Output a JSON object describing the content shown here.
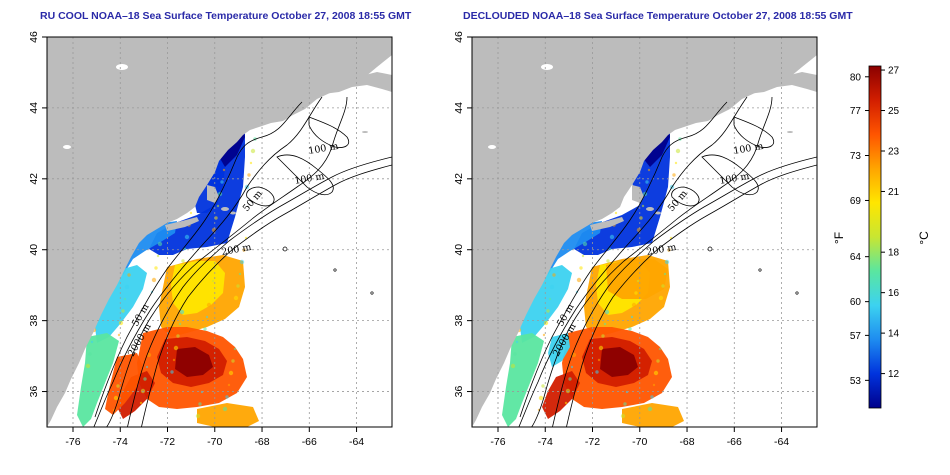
{
  "panels": [
    {
      "id": "left",
      "title": "RU COOL NOAA–18 Sea Surface Temperature October 27, 2008 18:55 GMT"
    },
    {
      "id": "right",
      "title": "DECLOUDED NOAA–18 Sea Surface Temperature October 27, 2008 18:55 GMT"
    }
  ],
  "map": {
    "x_ticks": [
      "-76",
      "-74",
      "-72",
      "-70",
      "-68",
      "-66",
      "-64"
    ],
    "y_ticks": [
      "36",
      "38",
      "40",
      "42",
      "44",
      "46"
    ],
    "lon_range": [
      -77.1,
      -62.5
    ],
    "lat_range": [
      35,
      46
    ],
    "grid": "dotted",
    "contour_labels": [
      "100 m",
      "100 m",
      "50 m",
      "200 m",
      "50 m",
      "2000 m"
    ],
    "land_color": "#bcbcbc",
    "ocean_color": "#ffffff"
  },
  "colorbar": {
    "fahrenheit_ticks": [
      "80",
      "77",
      "73",
      "69",
      "64",
      "60",
      "57",
      "53"
    ],
    "celsius_ticks": [
      "27",
      "25",
      "23",
      "21",
      "18",
      "16",
      "14",
      "12"
    ],
    "f_unit": "°F",
    "c_unit": "°C",
    "colors": [
      "#00008b",
      "#0033dd",
      "#1e8cf0",
      "#3cd2f0",
      "#5ae6a0",
      "#c8e632",
      "#ffe600",
      "#ffa500",
      "#ff5500",
      "#d21e00",
      "#8b0000"
    ]
  }
}
